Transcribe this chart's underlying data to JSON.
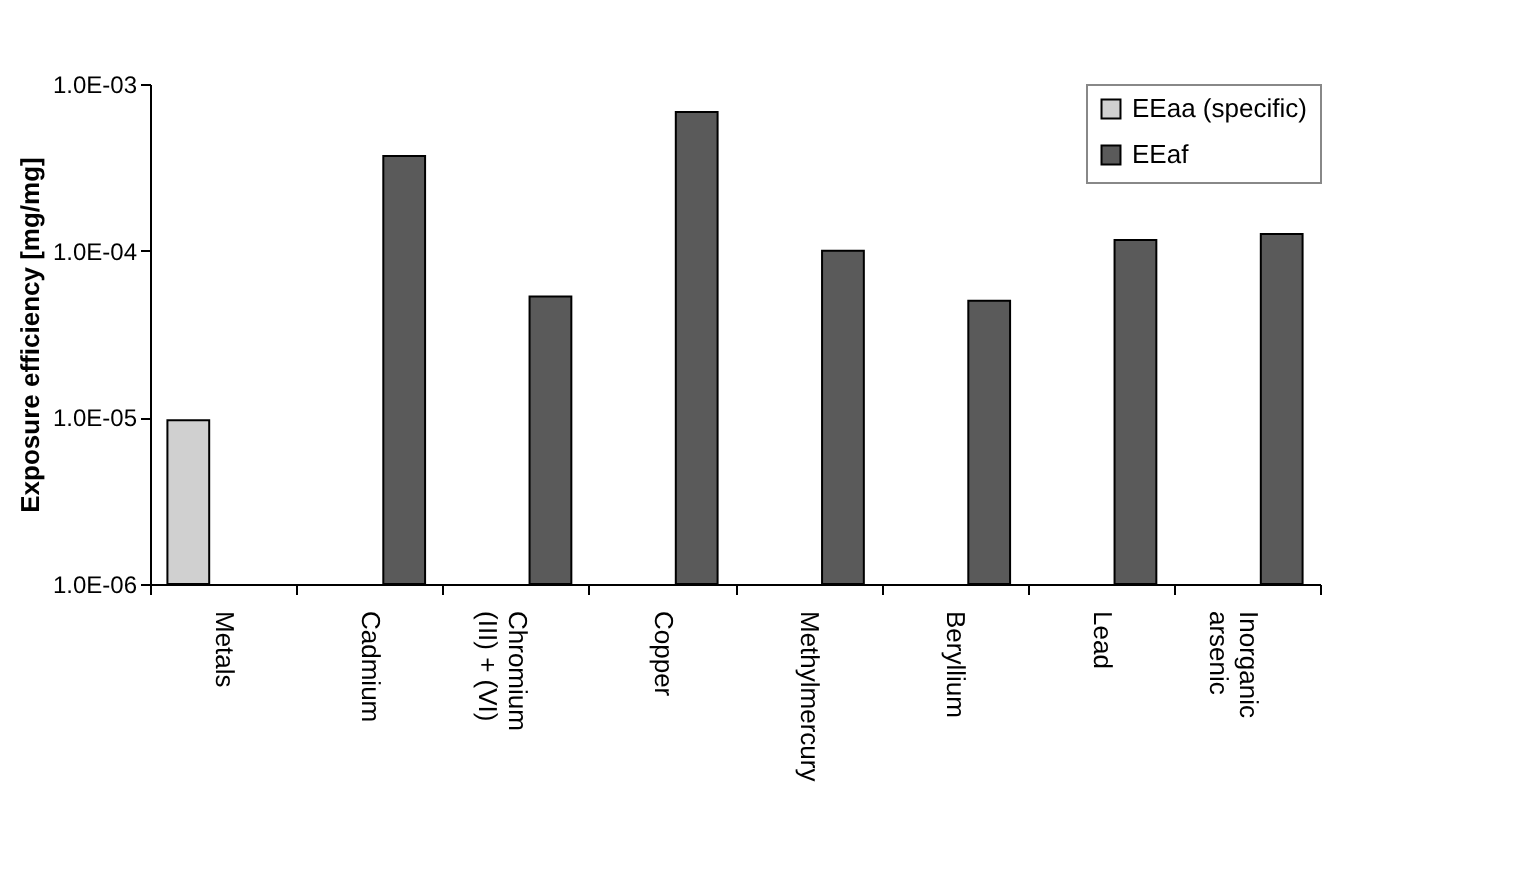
{
  "chart_data": {
    "type": "bar",
    "ylabel": "Exposure efficiency [mg/mg]",
    "categories": [
      "Metals",
      "Cadmium",
      "Chromium (III) + (VI)",
      "Copper",
      "Methylmercury",
      "Beryllium",
      "Lead",
      "Inorganic arsenic"
    ],
    "series": [
      {
        "name": "EEaa (specific)",
        "color": "#d0d0d0",
        "values": [
          9.6e-06,
          null,
          null,
          null,
          null,
          null,
          null,
          null
        ]
      },
      {
        "name": "EEaf",
        "color": "#5a5a5a",
        "values": [
          null,
          0.00037,
          5.3e-05,
          0.00068,
          0.0001,
          5e-05,
          0.000116,
          0.000126
        ]
      }
    ],
    "log": true,
    "ylim": [
      1e-06,
      0.001
    ],
    "yticks": [
      {
        "value": 1e-06,
        "label": "1.0E-06"
      },
      {
        "value": 1e-05,
        "label": "1.0E-05"
      },
      {
        "value": 0.0001,
        "label": "1.0E-04"
      },
      {
        "value": 0.001,
        "label": "1.0E-03"
      }
    ],
    "grid": false,
    "legend": "top right"
  }
}
